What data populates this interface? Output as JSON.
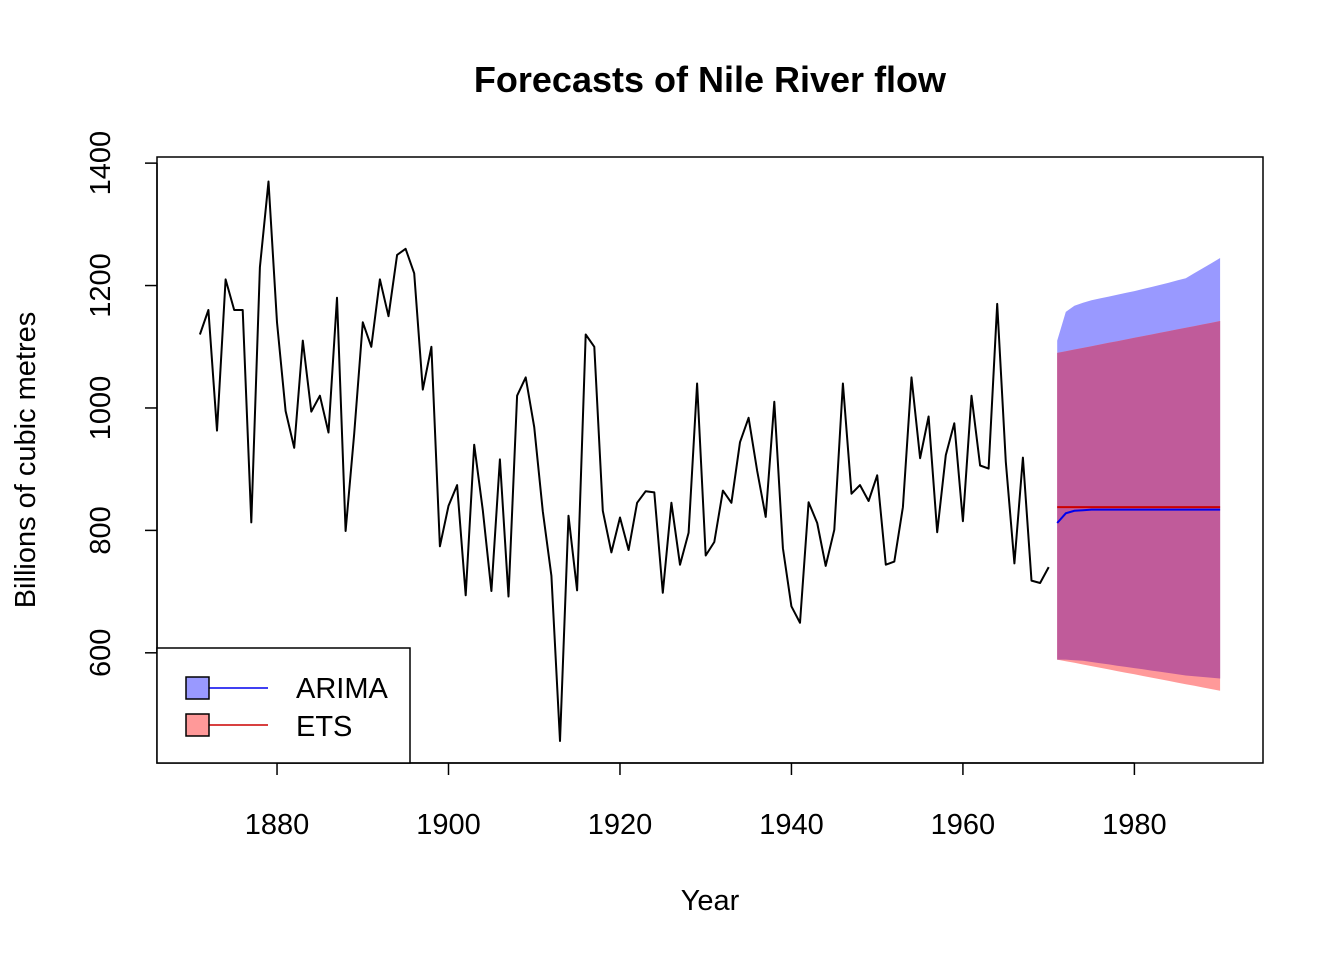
{
  "chart_data": {
    "type": "line",
    "title": "Forecasts of Nile River flow",
    "xlabel": "Year",
    "ylabel": "Billions of cubic metres",
    "xlim": [
      1866,
      1995
    ],
    "ylim": [
      420,
      1410
    ],
    "x_ticks": [
      1880,
      1900,
      1920,
      1940,
      1960,
      1980
    ],
    "y_ticks": [
      600,
      800,
      1000,
      1200,
      1400
    ],
    "grid": false,
    "legend_position": "bottom-left",
    "history": {
      "x_start": 1871,
      "values": [
        1120,
        1160,
        963,
        1210,
        1160,
        1160,
        813,
        1230,
        1370,
        1140,
        995,
        935,
        1110,
        994,
        1020,
        960,
        1180,
        799,
        958,
        1140,
        1100,
        1210,
        1150,
        1250,
        1260,
        1220,
        1030,
        1100,
        774,
        840,
        874,
        694,
        940,
        833,
        701,
        916,
        692,
        1020,
        1050,
        969,
        831,
        726,
        456,
        824,
        702,
        1120,
        1100,
        832,
        764,
        821,
        768,
        845,
        864,
        862,
        698,
        845,
        744,
        796,
        1040,
        759,
        781,
        865,
        845,
        944,
        984,
        897,
        822,
        1010,
        771,
        676,
        649,
        846,
        812,
        742,
        801,
        1040,
        860,
        874,
        848,
        890,
        744,
        749,
        838,
        1050,
        918,
        986,
        797,
        923,
        975,
        815,
        1020,
        906,
        901,
        1170,
        912,
        746,
        919,
        718,
        714,
        740
      ]
    },
    "series": [
      {
        "name": "ARIMA",
        "color": "#0000ee",
        "band_color": "#9999ff",
        "x": [
          1971,
          1972,
          1973,
          1974,
          1975,
          1976,
          1978,
          1980,
          1983,
          1986,
          1990
        ],
        "values": [
          812,
          828,
          832,
          833,
          834,
          834,
          834,
          834,
          834,
          834,
          834
        ],
        "upper": [
          1110,
          1157,
          1167,
          1172,
          1176,
          1179,
          1185,
          1191,
          1201,
          1212,
          1245
        ],
        "lower": [
          589,
          589,
          588,
          587,
          585,
          583,
          579,
          575,
          569,
          563,
          558
        ]
      },
      {
        "name": "ETS",
        "color": "#cc0000",
        "band_color": "#ff9999",
        "x": [
          1971,
          1990
        ],
        "values": [
          838,
          838
        ],
        "upper": [
          1090,
          1142
        ],
        "lower": [
          589,
          538
        ]
      }
    ],
    "overlap_color": "#c05b9a"
  }
}
